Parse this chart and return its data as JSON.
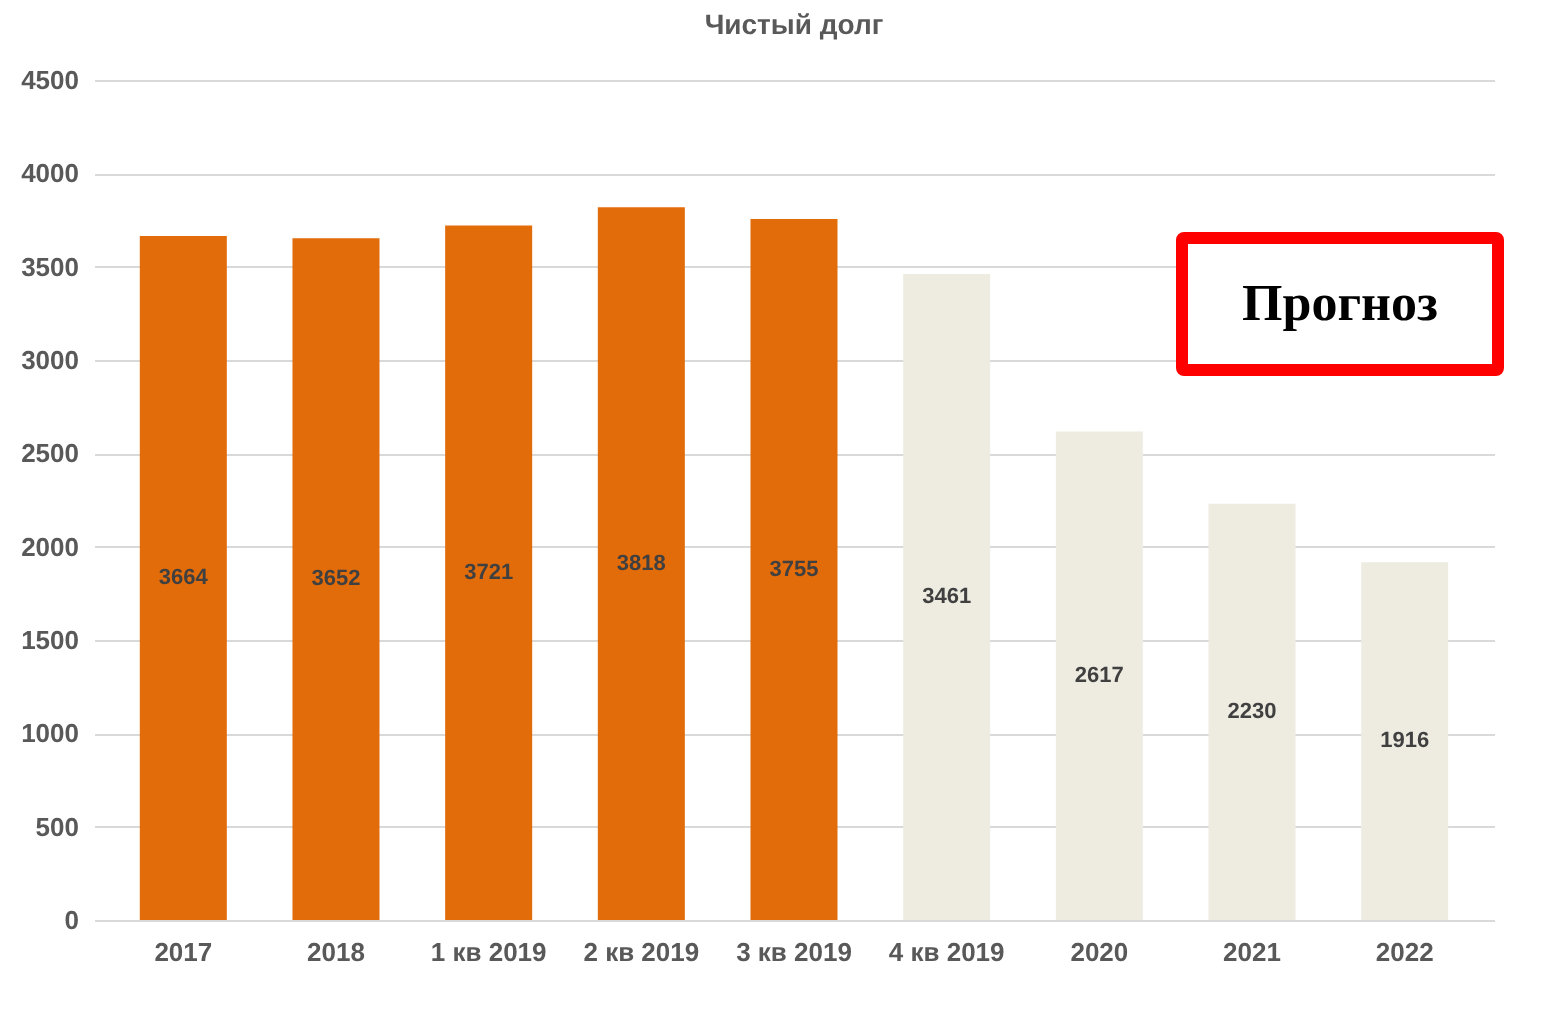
{
  "chart_data": {
    "type": "bar",
    "title": "Чистый долг",
    "categories": [
      "2017",
      "2018",
      "1 кв 2019",
      "2 кв 2019",
      "3 кв 2019",
      "4 кв 2019",
      "2020",
      "2021",
      "2022"
    ],
    "values": [
      3664,
      3652,
      3721,
      3818,
      3755,
      3461,
      2617,
      2230,
      1916
    ],
    "colors": [
      "#e36c0a",
      "#e36c0a",
      "#e36c0a",
      "#e36c0a",
      "#e36c0a",
      "#eeece1",
      "#eeece1",
      "#eeece1",
      "#eeece1"
    ],
    "ylim": [
      0,
      4500
    ],
    "yticks": [
      0,
      500,
      1000,
      1500,
      2000,
      2500,
      3000,
      3500,
      4000,
      4500
    ],
    "grid": "y",
    "data_labels": true,
    "annotations": [
      "Прогноз"
    ]
  }
}
